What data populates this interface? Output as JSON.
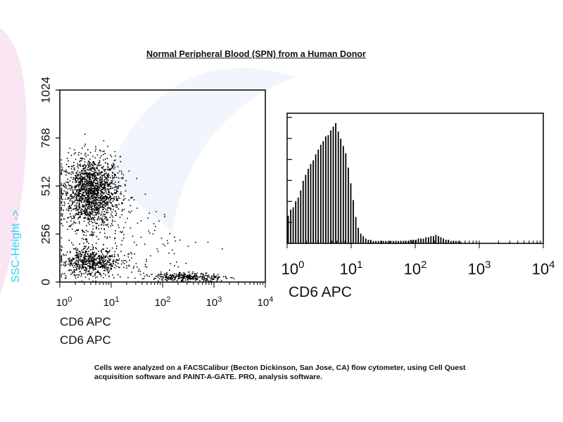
{
  "title": "Normal Peripheral Blood (SPN) from a Human Donor",
  "footnote_line1": "Cells were analyzed on a FACSCalibur (Becton Dickinson, San Jose, CA) flow cytometer, using Cell Quest",
  "footnote_line2": "acquisition software and PAINT-A-GATE. PRO, analysis software.",
  "colors": {
    "points": "#000000",
    "bars": "#000000",
    "ylabel": "#2ad0e8",
    "swoosh": "#f6dcec"
  },
  "chart_data": [
    {
      "type": "scatter",
      "xlabel_lines": [
        "CD6 APC",
        "CD6 APC"
      ],
      "ylabel": "SSC-Height ->",
      "x_scale": "log",
      "xlim": [
        1,
        10000
      ],
      "ylim": [
        0,
        1024
      ],
      "x_tick_labels": [
        {
          "base": "10",
          "exp": "0",
          "value": 1
        },
        {
          "base": "10",
          "exp": "1",
          "value": 10
        },
        {
          "base": "10",
          "exp": "2",
          "value": 100
        },
        {
          "base": "10",
          "exp": "3",
          "value": 1000
        },
        {
          "base": "10",
          "exp": "4",
          "value": 10000
        }
      ],
      "y_ticks": [
        0,
        256,
        512,
        768,
        1024
      ],
      "populations": [
        {
          "name": "",
          "x_center": 4,
          "x_log_spread": 0.28,
          "y_center": 480,
          "y_spread": 95,
          "n": 1700
        },
        {
          "name": "",
          "x_center": 4,
          "x_log_spread": 0.3,
          "y_center": 110,
          "y_spread": 40,
          "n": 650
        },
        {
          "name": "",
          "x_center": 300,
          "x_log_spread": 0.35,
          "y_center": 28,
          "y_spread": 12,
          "n": 320
        },
        {
          "name": "",
          "x_center": 30,
          "x_log_spread": 0.6,
          "y_center": 220,
          "y_spread": 110,
          "n": 110
        }
      ],
      "grid": false
    },
    {
      "type": "bar",
      "subtype": "histogram",
      "xlabel": "CD6 APC",
      "x_scale": "log",
      "xlim": [
        1,
        10000
      ],
      "x_tick_labels": [
        {
          "base": "10",
          "exp": "0",
          "value": 1
        },
        {
          "base": "10",
          "exp": "1",
          "value": 10
        },
        {
          "base": "10",
          "exp": "2",
          "value": 100
        },
        {
          "base": "10",
          "exp": "3",
          "value": 1000
        },
        {
          "base": "10",
          "exp": "4",
          "value": 10000
        }
      ],
      "bin_log_start": 0.0,
      "bin_log_width": 0.0391,
      "counts": [
        23,
        28,
        30,
        35,
        38,
        44,
        52,
        57,
        62,
        66,
        69,
        74,
        78,
        82,
        85,
        89,
        90,
        94,
        97,
        100,
        93,
        87,
        81,
        75,
        63,
        50,
        36,
        22,
        13,
        8,
        6,
        4,
        3,
        3,
        2,
        2,
        2,
        2,
        2,
        2,
        2,
        2,
        2,
        2,
        2,
        2,
        2,
        2,
        2,
        3,
        3,
        3,
        4,
        4,
        4,
        5,
        5,
        6,
        6,
        7,
        6,
        5,
        4,
        3,
        3,
        2,
        2,
        2,
        2,
        1
      ],
      "grid": false
    }
  ]
}
